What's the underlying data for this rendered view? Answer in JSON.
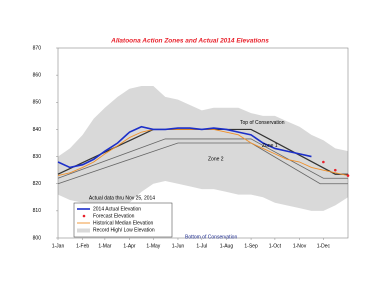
{
  "chart_data": {
    "type": "line",
    "title": "Allatoona Action Zones and Actual 2014 Elevations",
    "x": [
      0,
      15,
      31,
      45,
      59,
      75,
      90,
      105,
      120,
      135,
      151,
      166,
      181,
      196,
      212,
      227,
      243,
      258,
      273,
      288,
      304,
      319,
      334,
      349,
      365
    ],
    "xlim": [
      0,
      365
    ],
    "xticks": [
      {
        "value": 0,
        "label": "1-Jan"
      },
      {
        "value": 31,
        "label": "1-Feb"
      },
      {
        "value": 59,
        "label": "1-Mar"
      },
      {
        "value": 90,
        "label": "1-Apr"
      },
      {
        "value": 120,
        "label": "1-May"
      },
      {
        "value": 151,
        "label": "1-Jun"
      },
      {
        "value": 181,
        "label": "1-Jul"
      },
      {
        "value": 212,
        "label": "1-Aug"
      },
      {
        "value": 243,
        "label": "1-Sep"
      },
      {
        "value": 273,
        "label": "1-Oct"
      },
      {
        "value": 304,
        "label": "1-Nov"
      },
      {
        "value": 334,
        "label": "1-Dec"
      }
    ],
    "ylim": [
      800,
      870
    ],
    "yticks": [
      800,
      810,
      820,
      830,
      840,
      850,
      860,
      870
    ],
    "band": {
      "name": "Record High/ Low Elevation",
      "color": "#d9d9d9",
      "high": [
        830,
        833,
        838,
        844,
        848,
        852,
        855,
        856,
        856,
        852,
        851,
        849,
        847,
        848,
        848,
        848,
        846,
        845,
        845,
        843,
        841,
        838,
        836,
        833,
        832
      ],
      "low": [
        816,
        814,
        813,
        812,
        812,
        812,
        813,
        817,
        820,
        821,
        820,
        819,
        818,
        818,
        817,
        816,
        816,
        815,
        813,
        812,
        811,
        810,
        810,
        812,
        815
      ]
    },
    "reference_lines": [
      {
        "color": "#333333",
        "x": [
          0,
          120,
          243,
          349,
          365
        ],
        "values": [
          823.5,
          840,
          840,
          823.5,
          823.5
        ]
      },
      {
        "color": "#666666",
        "x": [
          0,
          135,
          243,
          334,
          365
        ],
        "values": [
          822,
          836.5,
          836.5,
          822,
          822
        ]
      },
      {
        "color": "#666666",
        "x": [
          0,
          151,
          243,
          330,
          365
        ],
        "values": [
          820,
          835,
          835,
          820,
          820
        ]
      }
    ],
    "series": [
      {
        "name": "Historical Median Elevation",
        "color": "#f0902a",
        "style": "line",
        "values": [
          823,
          824,
          826,
          828,
          831,
          834,
          837,
          839,
          840,
          840,
          840,
          840,
          840,
          840,
          839,
          838,
          835,
          833,
          831,
          829,
          828,
          826,
          825,
          824,
          823
        ]
      },
      {
        "name": "2014 Actual Elevation",
        "color": "#1c2fc9",
        "style": "thick",
        "values": [
          828,
          826,
          827,
          829,
          832,
          835,
          839,
          841,
          840,
          840,
          840.5,
          840.5,
          840,
          840.5,
          840,
          839,
          838,
          835,
          833,
          832,
          831,
          830,
          null,
          null,
          null
        ]
      },
      {
        "name": "Forecast Elevation",
        "color": "#e8202a",
        "style": "dots",
        "values": [
          null,
          null,
          null,
          null,
          null,
          null,
          null,
          null,
          null,
          null,
          null,
          null,
          null,
          null,
          null,
          null,
          null,
          null,
          null,
          null,
          null,
          null,
          828,
          825,
          823
        ]
      }
    ],
    "annotations": [
      "Top of Conservation",
      "Zone 1",
      "Zone 2",
      "Bottom of Conservation",
      "Actual data thru Nov 25, 2014"
    ]
  }
}
